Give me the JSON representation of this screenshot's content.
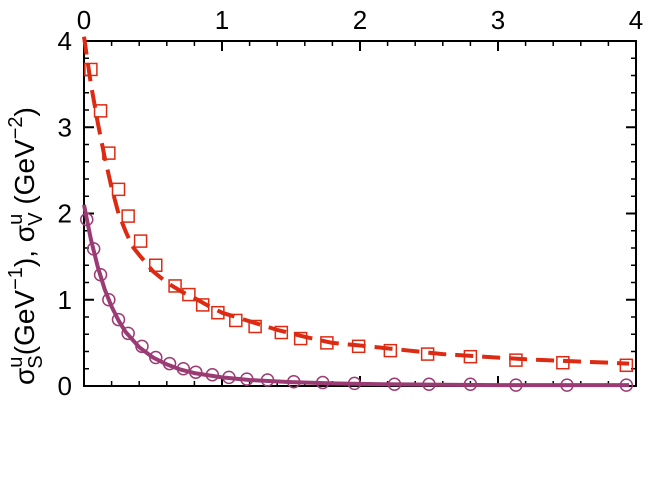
{
  "chart_data": {
    "type": "line",
    "ylabel": {
      "p1": "σ",
      "p1_sup": "u",
      "p1_sub": "S",
      "p2": "(GeV",
      "p2_sup": "−1",
      "p3": "), σ",
      "p3_sup": "u",
      "p3_sub": "V",
      "p4": " (GeV",
      "p4_sup": "−2",
      "p5": ")"
    },
    "xlim": [
      0,
      4
    ],
    "ylim": [
      0,
      4
    ],
    "xticks": [
      0,
      1,
      2,
      3,
      4
    ],
    "xtick_labels": [
      "0",
      "1",
      "2",
      "3",
      "4"
    ],
    "yticks": [
      0,
      1,
      2,
      3,
      4
    ],
    "ytick_labels": [
      "0",
      "1",
      "2",
      "3",
      "4"
    ],
    "series": [
      {
        "style": "dashed",
        "color": "#dd2a12",
        "x": [
          0.0,
          0.05,
          0.1,
          0.15,
          0.2,
          0.25,
          0.3,
          0.35,
          0.4,
          0.5,
          0.6,
          0.7,
          0.8,
          0.9,
          1.0,
          1.2,
          1.4,
          1.6,
          1.8,
          2.0,
          2.3,
          2.6,
          2.9,
          3.2,
          3.5,
          3.8,
          3.95
        ],
        "y": [
          4.05,
          3.5,
          3.05,
          2.65,
          2.3,
          2.0,
          1.8,
          1.62,
          1.52,
          1.33,
          1.2,
          1.1,
          1.02,
          0.93,
          0.85,
          0.75,
          0.65,
          0.57,
          0.5,
          0.47,
          0.42,
          0.37,
          0.34,
          0.31,
          0.29,
          0.27,
          0.26
        ]
      },
      {
        "style": "markers-square",
        "color": "#dd2a12",
        "x": [
          0.05,
          0.12,
          0.18,
          0.25,
          0.32,
          0.41,
          0.52,
          0.66,
          0.76,
          0.86,
          0.97,
          1.1,
          1.24,
          1.43,
          1.57,
          1.76,
          1.99,
          2.22,
          2.49,
          2.8,
          3.13,
          3.47,
          3.93
        ],
        "y": [
          3.67,
          3.19,
          2.7,
          2.28,
          1.97,
          1.68,
          1.4,
          1.16,
          1.06,
          0.94,
          0.85,
          0.76,
          0.69,
          0.62,
          0.55,
          0.5,
          0.46,
          0.41,
          0.37,
          0.34,
          0.3,
          0.27,
          0.24
        ]
      },
      {
        "style": "solid",
        "color": "#9b3b74",
        "x": [
          0.0,
          0.05,
          0.1,
          0.15,
          0.2,
          0.25,
          0.3,
          0.4,
          0.5,
          0.6,
          0.7,
          0.8,
          1.0,
          1.2,
          1.5,
          1.8,
          2.2,
          2.6,
          3.0,
          3.5,
          3.95
        ],
        "y": [
          2.1,
          1.7,
          1.38,
          1.12,
          0.92,
          0.76,
          0.63,
          0.45,
          0.33,
          0.25,
          0.19,
          0.15,
          0.1,
          0.07,
          0.045,
          0.03,
          0.02,
          0.015,
          0.01,
          0.01,
          0.01
        ]
      },
      {
        "style": "markers-circle",
        "color": "#9b3b74",
        "x": [
          0.02,
          0.07,
          0.12,
          0.18,
          0.25,
          0.32,
          0.42,
          0.52,
          0.62,
          0.72,
          0.81,
          0.93,
          1.05,
          1.18,
          1.33,
          1.52,
          1.73,
          1.96,
          2.25,
          2.5,
          2.8,
          3.13,
          3.5,
          3.93
        ],
        "y": [
          1.93,
          1.59,
          1.29,
          1.0,
          0.77,
          0.61,
          0.46,
          0.33,
          0.26,
          0.2,
          0.16,
          0.13,
          0.1,
          0.08,
          0.07,
          0.05,
          0.04,
          0.03,
          0.02,
          0.02,
          0.02,
          0.01,
          0.01,
          0.01
        ]
      }
    ]
  }
}
